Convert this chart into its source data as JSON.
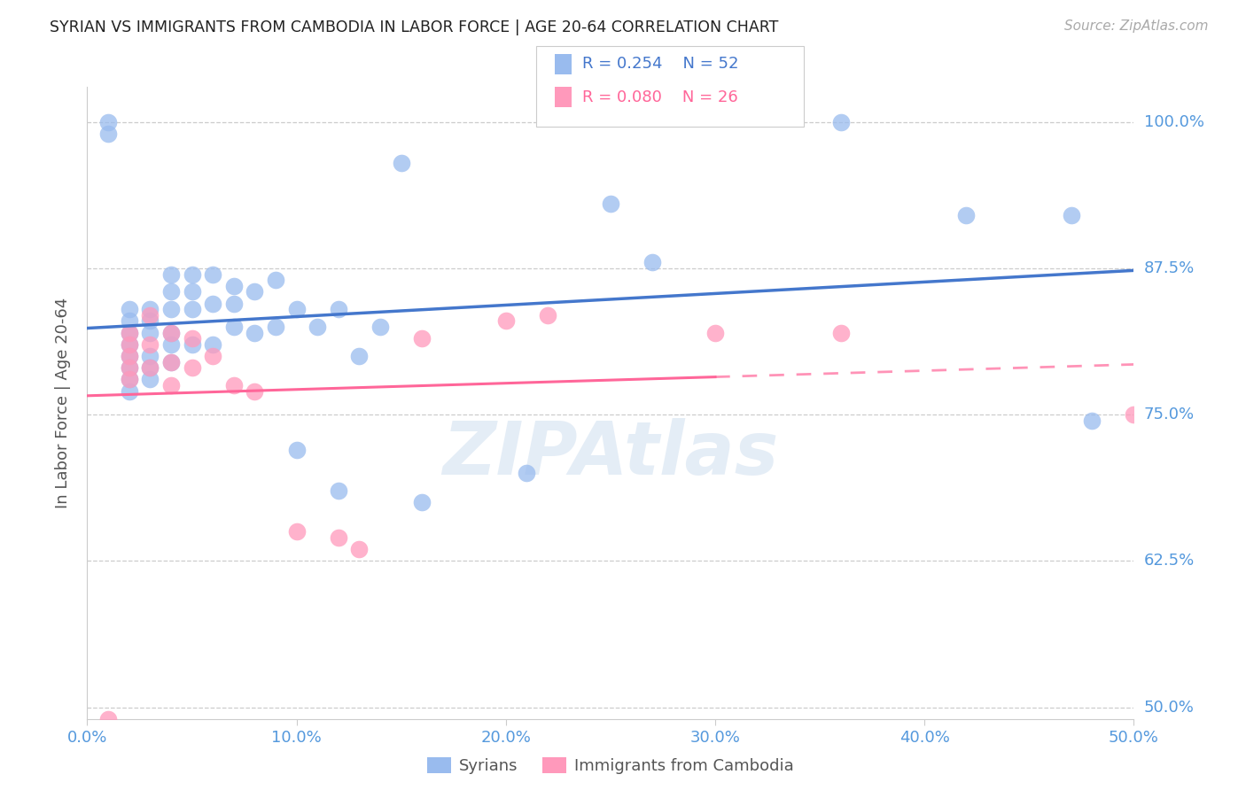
{
  "title": "SYRIAN VS IMMIGRANTS FROM CAMBODIA IN LABOR FORCE | AGE 20-64 CORRELATION CHART",
  "source": "Source: ZipAtlas.com",
  "ylabel": "In Labor Force | Age 20-64",
  "xlim": [
    0.0,
    0.5
  ],
  "ylim": [
    0.49,
    1.03
  ],
  "yticks": [
    0.5,
    0.625,
    0.75,
    0.875,
    1.0
  ],
  "ytick_labels": [
    "50.0%",
    "62.5%",
    "75.0%",
    "87.5%",
    "100.0%"
  ],
  "xticks": [
    0.0,
    0.1,
    0.2,
    0.3,
    0.4,
    0.5
  ],
  "xtick_labels": [
    "0.0%",
    "10.0%",
    "20.0%",
    "30.0%",
    "40.0%",
    "50.0%"
  ],
  "blue_r": 0.254,
  "blue_n": 52,
  "pink_r": 0.08,
  "pink_n": 26,
  "blue_color": "#99BBEE",
  "pink_color": "#FF99BB",
  "blue_line_color": "#4477CC",
  "pink_line_color": "#FF6699",
  "axis_label_color": "#5599DD",
  "blue_x": [
    0.01,
    0.01,
    0.02,
    0.02,
    0.02,
    0.02,
    0.02,
    0.02,
    0.02,
    0.02,
    0.03,
    0.03,
    0.03,
    0.03,
    0.03,
    0.03,
    0.04,
    0.04,
    0.04,
    0.04,
    0.04,
    0.04,
    0.05,
    0.05,
    0.05,
    0.05,
    0.06,
    0.06,
    0.06,
    0.07,
    0.07,
    0.07,
    0.08,
    0.08,
    0.09,
    0.09,
    0.1,
    0.1,
    0.11,
    0.12,
    0.12,
    0.13,
    0.14,
    0.15,
    0.16,
    0.21,
    0.25,
    0.27,
    0.36,
    0.42,
    0.47,
    0.48
  ],
  "blue_y": [
    0.99,
    1.0,
    0.84,
    0.83,
    0.82,
    0.81,
    0.8,
    0.79,
    0.78,
    0.77,
    0.84,
    0.83,
    0.82,
    0.8,
    0.79,
    0.78,
    0.87,
    0.855,
    0.84,
    0.82,
    0.81,
    0.795,
    0.87,
    0.855,
    0.84,
    0.81,
    0.87,
    0.845,
    0.81,
    0.86,
    0.845,
    0.825,
    0.855,
    0.82,
    0.865,
    0.825,
    0.84,
    0.72,
    0.825,
    0.84,
    0.685,
    0.8,
    0.825,
    0.965,
    0.675,
    0.7,
    0.93,
    0.88,
    1.0,
    0.92,
    0.92,
    0.745
  ],
  "pink_x": [
    0.01,
    0.02,
    0.02,
    0.02,
    0.02,
    0.02,
    0.03,
    0.03,
    0.03,
    0.04,
    0.04,
    0.04,
    0.05,
    0.05,
    0.06,
    0.07,
    0.08,
    0.1,
    0.12,
    0.13,
    0.16,
    0.2,
    0.22,
    0.3,
    0.36,
    0.5
  ],
  "pink_y": [
    0.49,
    0.82,
    0.81,
    0.8,
    0.79,
    0.78,
    0.835,
    0.81,
    0.79,
    0.82,
    0.795,
    0.775,
    0.815,
    0.79,
    0.8,
    0.775,
    0.77,
    0.65,
    0.645,
    0.635,
    0.815,
    0.83,
    0.835,
    0.82,
    0.82,
    0.75
  ]
}
